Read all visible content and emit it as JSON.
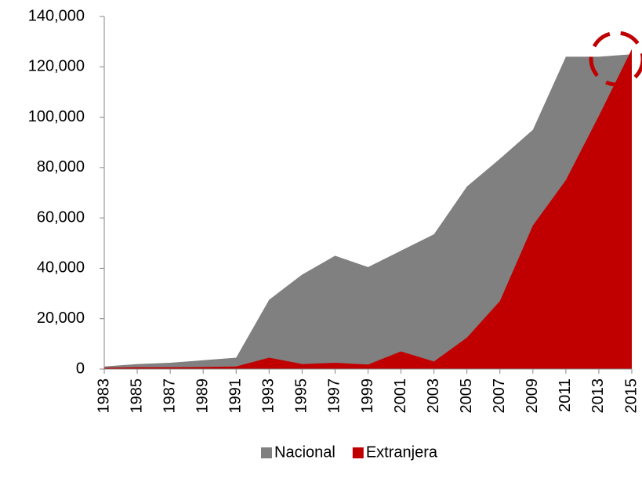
{
  "chart_data": {
    "type": "area",
    "categories": [
      "1983",
      "1985",
      "1987",
      "1989",
      "1991",
      "1993",
      "1995",
      "1997",
      "1999",
      "2001",
      "2003",
      "2005",
      "2007",
      "2009",
      "2011",
      "2013",
      "2015"
    ],
    "series": [
      {
        "name": "Nacional",
        "color": "#808080",
        "values": [
          1000,
          2000,
          2500,
          3500,
          4500,
          27500,
          37500,
          45000,
          40500,
          47000,
          53500,
          72500,
          83500,
          95000,
          124000,
          124000,
          125000
        ]
      },
      {
        "name": "Extranjera",
        "color": "#c00000",
        "values": [
          500,
          700,
          700,
          800,
          1000,
          4500,
          2000,
          2500,
          1800,
          7000,
          3000,
          12500,
          27000,
          57000,
          75000,
          100500,
          127000
        ]
      }
    ],
    "ylim": [
      0,
      140000
    ],
    "yticks": [
      0,
      {
        "value": 20000,
        "label": "20,000"
      },
      {
        "value": 40000,
        "label": "40,000"
      },
      {
        "value": 60000,
        "label": "60,000"
      },
      {
        "value": 80000,
        "label": "80,000"
      },
      {
        "value": 100000,
        "label": "100,000"
      },
      {
        "value": 120000,
        "label": "120,000"
      },
      {
        "value": 140000,
        "label": "140,000"
      }
    ],
    "legend": "bottom"
  }
}
